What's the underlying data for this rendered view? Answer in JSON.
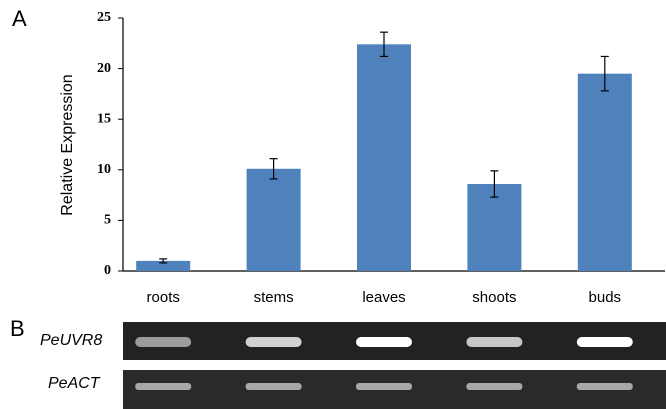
{
  "chart_data": {
    "type": "bar",
    "ylabel": "Relative Expression",
    "categories": [
      "roots",
      "stems",
      "leaves",
      "shoots",
      "buds"
    ],
    "values": [
      1.0,
      10.1,
      22.4,
      8.6,
      19.5
    ],
    "errors": [
      0.2,
      1.0,
      1.2,
      1.3,
      1.7
    ],
    "color": "#4f81bd",
    "ylim": [
      0,
      25
    ],
    "yticks": [
      0,
      5,
      10,
      15,
      20,
      25
    ],
    "grid": false
  },
  "panel_labels": [
    "A",
    "B"
  ],
  "gel": {
    "rows": [
      "PeUVR8",
      "PeACT"
    ]
  }
}
